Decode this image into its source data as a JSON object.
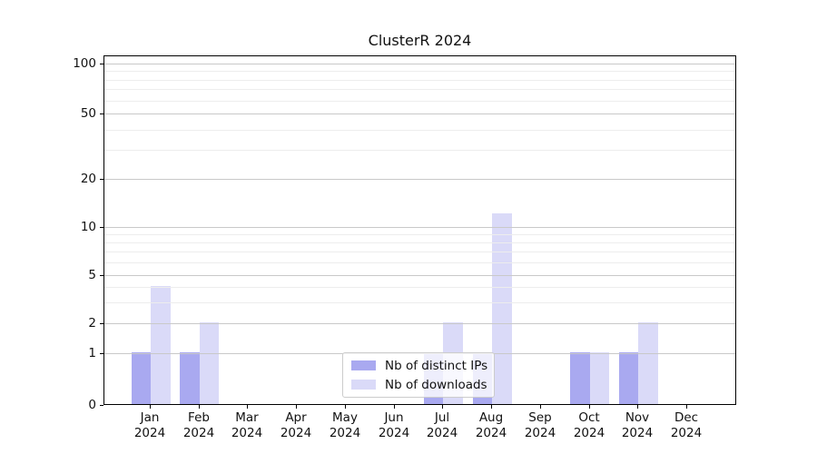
{
  "chart_data": {
    "type": "bar",
    "title": "ClusterR 2024",
    "year_label": "2024",
    "categories": [
      "Jan",
      "Feb",
      "Mar",
      "Apr",
      "May",
      "Jun",
      "Jul",
      "Aug",
      "Sep",
      "Oct",
      "Nov",
      "Dec"
    ],
    "series": [
      {
        "name": "Nb of distinct IPs",
        "color": "#a9a9f0",
        "values": [
          1,
          1,
          0,
          0,
          0,
          0,
          1,
          1,
          0,
          1,
          1,
          0
        ]
      },
      {
        "name": "Nb of downloads",
        "color": "#dadaf8",
        "values": [
          4,
          2,
          0,
          0,
          0,
          0,
          2,
          12,
          0,
          1,
          2,
          0
        ]
      }
    ],
    "y_axis": {
      "scale": "log-like",
      "ticks": [
        0,
        1,
        2,
        5,
        10,
        20,
        50,
        100
      ],
      "minor_gridlines": [
        3,
        4,
        6,
        7,
        8,
        9,
        30,
        40,
        60,
        70,
        80,
        90
      ],
      "range": [
        0,
        100
      ]
    },
    "x_axis": {
      "label_lines": 2
    },
    "legend": {
      "position": "lower-center",
      "entries": [
        "Nb of distinct IPs",
        "Nb of downloads"
      ]
    },
    "grid": "horizontal",
    "colors": {
      "spine": "#000000",
      "major_grid": "#c9c9c9",
      "minor_grid": "#ededed",
      "legend_border": "#cccccc",
      "background": "#ffffff"
    }
  }
}
